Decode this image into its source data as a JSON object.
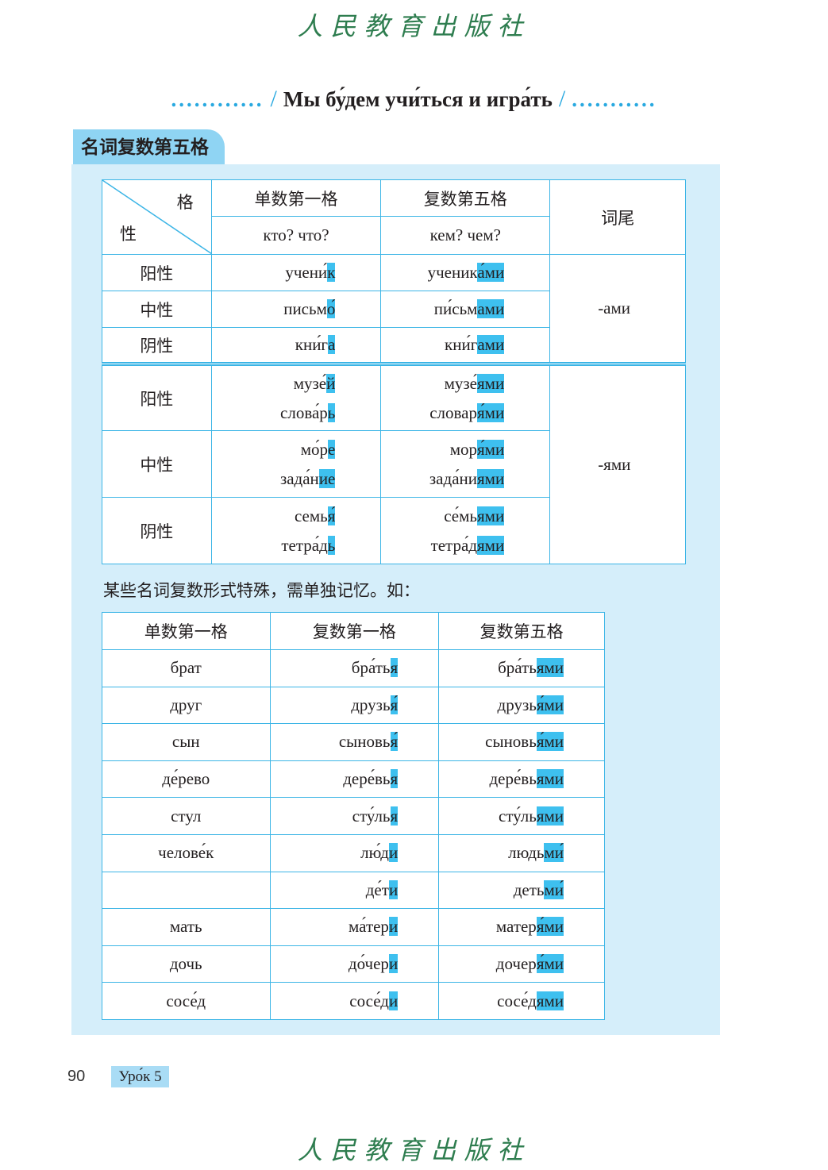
{
  "publisher_logo": "人民教育出版社",
  "header": {
    "dots_left": "............",
    "title": "Мы бу́дем учи́ться и игра́ть",
    "dots_right": "..........."
  },
  "section_tab": "名词复数第五格",
  "table1": {
    "corner_case": "格",
    "corner_gender": "性",
    "col_sg_nom": "单数第一格",
    "col_pl_instr": "复数第五格",
    "col_ending": "词尾",
    "q_sg": "кто? что?",
    "q_pl": "кем? чем?",
    "groups": [
      {
        "ending": "-ами",
        "rows": [
          {
            "gender": "阳性",
            "words": [
              [
                [
                  "учени́",
                  "к"
                ],
                [
                  "ученик",
                  "а́ми"
                ]
              ]
            ]
          },
          {
            "gender": "中性",
            "words": [
              [
                [
                  "письм",
                  "о́"
                ],
                [
                  "пи́сьм",
                  "ами"
                ]
              ]
            ]
          },
          {
            "gender": "阴性",
            "words": [
              [
                [
                  "кни́г",
                  "а"
                ],
                [
                  "кни́г",
                  "ами"
                ]
              ]
            ]
          }
        ]
      },
      {
        "ending": "-ями",
        "rows": [
          {
            "gender": "阳性",
            "words": [
              [
                [
                  "музе́",
                  "й"
                ],
                [
                  "музе́",
                  "ями"
                ]
              ],
              [
                [
                  "слова́р",
                  "ь"
                ],
                [
                  "словар",
                  "я́ми"
                ]
              ]
            ]
          },
          {
            "gender": "中性",
            "words": [
              [
                [
                  "мо́р",
                  "е"
                ],
                [
                  "мор",
                  "я́ми"
                ]
              ],
              [
                [
                  "зада́н",
                  "ие"
                ],
                [
                  "зада́ни",
                  "ями"
                ]
              ]
            ]
          },
          {
            "gender": "阴性",
            "words": [
              [
                [
                  "семь",
                  "я́"
                ],
                [
                  "се́мь",
                  "ями"
                ]
              ],
              [
                [
                  "тетра́д",
                  "ь"
                ],
                [
                  "тетра́д",
                  "ями"
                ]
              ]
            ]
          }
        ]
      }
    ]
  },
  "note": "某些名词复数形式特殊，需单独记忆。如：",
  "table2": {
    "headers": [
      "单数第一格",
      "复数第一格",
      "复数第五格"
    ],
    "rows": [
      {
        "sg": "брат",
        "pl": [
          "бра́ть",
          "я"
        ],
        "ins": [
          "бра́ть",
          "ями"
        ]
      },
      {
        "sg": "друг",
        "pl": [
          "друзь",
          "я́"
        ],
        "ins": [
          "друзь",
          "я́ми"
        ]
      },
      {
        "sg": "сын",
        "pl": [
          "сыновь",
          "я́"
        ],
        "ins": [
          "сыновь",
          "я́ми"
        ]
      },
      {
        "sg": "де́рево",
        "pl": [
          "дере́вь",
          "я"
        ],
        "ins": [
          "дере́вь",
          "ями"
        ]
      },
      {
        "sg": "стул",
        "pl": [
          "сту́ль",
          "я"
        ],
        "ins": [
          "сту́ль",
          "ями"
        ]
      },
      {
        "sg": "челове́к",
        "pl": [
          "лю́д",
          "и"
        ],
        "ins": [
          "людь",
          "ми́"
        ]
      },
      {
        "sg": "",
        "pl": [
          "де́т",
          "и"
        ],
        "ins": [
          "деть",
          "ми́"
        ]
      },
      {
        "sg": "мать",
        "pl": [
          "ма́тер",
          "и"
        ],
        "ins": [
          "матер",
          "я́ми"
        ]
      },
      {
        "sg": "дочь",
        "pl": [
          "до́чер",
          "и"
        ],
        "ins": [
          "дочер",
          "я́ми"
        ]
      },
      {
        "sg": "сосе́д",
        "pl": [
          "сосе́д",
          "и"
        ],
        "ins": [
          "сосе́д",
          "ями"
        ]
      }
    ]
  },
  "footer": {
    "page_number": "90",
    "lesson": "Уро́к 5"
  },
  "colors": {
    "accent": "#3ec0ef",
    "panel": "#d5eefa",
    "tab": "#8fd4f3",
    "line": "#3cb5e6",
    "logo": "#2e7d4f"
  }
}
